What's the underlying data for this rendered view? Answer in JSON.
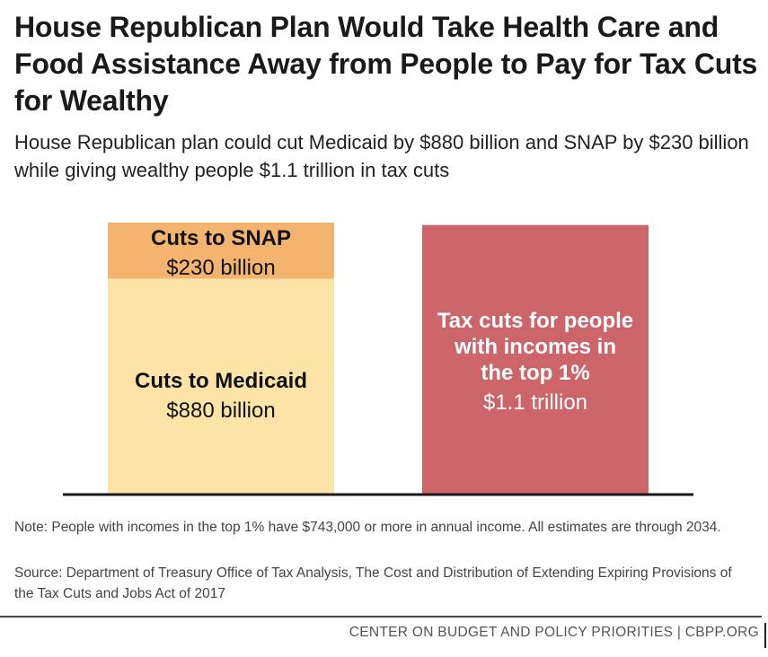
{
  "title": "House Republican Plan Would Take Health Care and Food Assistance Away from People to Pay for Tax Cuts for Wealthy",
  "subtitle": "House Republican plan could cut Medicaid by $880 billion and SNAP by $230 billion while giving wealthy people $1.1 trillion in tax cuts",
  "chart_data": {
    "type": "bar",
    "stacking": "stacked",
    "unit": "billions of dollars",
    "grid": false,
    "legend": "none",
    "ylim": [
      0,
      1110
    ],
    "bars": [
      {
        "segments": [
          {
            "label": "Cuts to Medicaid",
            "value_label": "$880 billion",
            "value": 880,
            "color": "#FCE4A8"
          },
          {
            "label": "Cuts to SNAP",
            "value_label": "$230 billion",
            "value": 230,
            "color": "#F2B46E"
          }
        ]
      },
      {
        "segments": [
          {
            "label_lines": [
              "Tax cuts for people",
              "with incomes in",
              "the top 1%"
            ],
            "value_label": "$1.1 trillion",
            "value": 1100,
            "color": "#CC656A"
          }
        ]
      }
    ]
  },
  "note": "Note: People with incomes in the top 1% have $743,000 or more in annual income. All estimates are through 2034.",
  "source": "Source: Department of Treasury Office of Tax Analysis, The Cost and Distribution of Extending Expiring Provisions of the Tax Cuts and Jobs Act of 2017",
  "footer": "CENTER ON BUDGET AND POLICY PRIORITIES | CBPP.ORG"
}
